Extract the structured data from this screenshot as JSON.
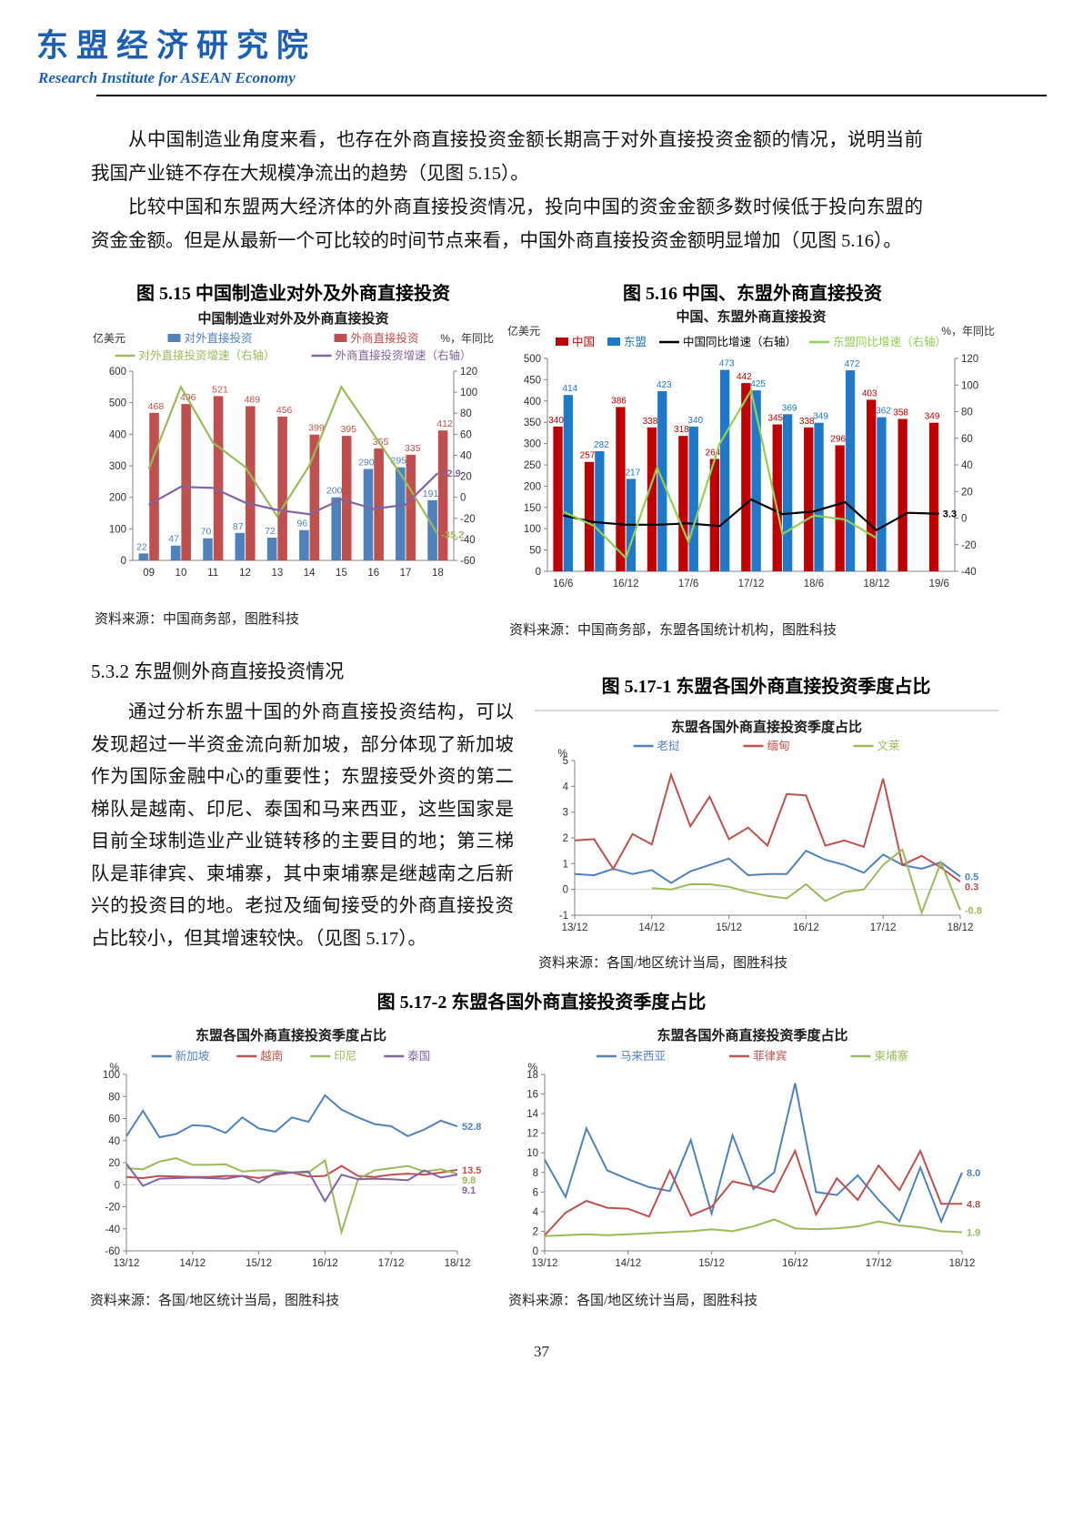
{
  "header": {
    "logo_cn": "东盟经济研究院",
    "logo_en": "Research Institute for ASEAN Economy"
  },
  "colors": {
    "logo_blue": "#1a5eb5",
    "body_text": "#111111"
  },
  "paragraphs": {
    "p1": "从中国制造业角度来看，也存在外商直接投资金额长期高于对外直接投资金额的情况，说明当前我国产业链不存在大规模净流出的趋势（见图 5.15）。",
    "p2": "比较中国和东盟两大经济体的外商直接投资情况，投向中国的资金金额多数时候低于投向东盟的资金金额。但是从最新一个可比较的时间节点来看，中国外商直接投资金额明显增加（见图 5.16）。",
    "section_heading": "5.3.2 东盟侧外商直接投资情况",
    "p3": "通过分析东盟十国的外商直接投资结构，可以发现超过一半资金流向新加坡，部分体现了新加坡作为国际金融中心的重要性；东盟接受外资的第二梯队是越南、印尼、泰国和马来西亚，这些国家是目前全球制造业产业链转移的主要目的地；第三梯队是菲律宾、柬埔寨，其中柬埔寨是继越南之后新兴的投资目的地。老挝及缅甸接受的外商直接投资占比较小，但其增速较快。（见图 5.17）。"
  },
  "captions": {
    "fig515": "图 5.15 中国制造业对外及外商直接投资",
    "fig516": "图 5.16 中国、东盟外商直接投资",
    "fig5171": "图 5.17-1 东盟各国外商直接投资季度占比",
    "fig5172": "图 5.17-2 东盟各国外商直接投资季度占比"
  },
  "page_number": "37",
  "chart_data": [
    {
      "type": "combo",
      "title": "中国制造业对外及外商直接投资",
      "unit_left": "亿美元",
      "unit_right": "%，年同比",
      "legend_rows": 2,
      "categories": [
        "09",
        "10",
        "11",
        "12",
        "13",
        "14",
        "15",
        "16",
        "17",
        "18"
      ],
      "x_label_stride": 1,
      "left_axis": {
        "min": 0,
        "max": 600,
        "step": 100
      },
      "right_axis": {
        "min": -60,
        "max": 120,
        "step": 20
      },
      "bar_series": [
        {
          "name": "对外直接投资",
          "color": "#4f81bd",
          "labels": true,
          "values": [
            22,
            47,
            70,
            87,
            72,
            96,
            200,
            290,
            295,
            191
          ]
        },
        {
          "name": "外商直接投资",
          "color": "#c0504d",
          "labels": true,
          "values": [
            468,
            496,
            521,
            489,
            456,
            399,
            395,
            355,
            335,
            412
          ]
        }
      ],
      "line_series": [
        {
          "name": "对外直接投资增速（右轴）",
          "color": "#9bbb59",
          "values": [
            27,
            105,
            52,
            29,
            -18,
            30,
            105,
            60,
            15,
            -35.2
          ],
          "end_label": "-35.2"
        },
        {
          "name": "外商直接投资增速（右轴）",
          "color": "#8064a2",
          "values": [
            -7,
            10,
            9,
            -5,
            -12,
            -16,
            -2,
            -11,
            -7,
            22.9
          ],
          "end_label": "22.9"
        }
      ],
      "source": "资料来源：中国商务部，图胜科技"
    },
    {
      "type": "combo",
      "title": "中国、东盟外商直接投资",
      "unit_left": "亿美元",
      "unit_right": "%，年同比",
      "legend_rows": 1,
      "categories": [
        "16/6",
        "16/9",
        "16/12",
        "17/3",
        "17/6",
        "17/9",
        "17/12",
        "18/3",
        "18/6",
        "18/9",
        "18/12",
        "19/3",
        "19/6"
      ],
      "x_label_stride": 2,
      "left_axis": {
        "min": 0,
        "max": 500,
        "step": 50
      },
      "right_axis": {
        "min": -40,
        "max": 120,
        "step": 20
      },
      "bar_series": [
        {
          "name": "中国",
          "color": "#c00000",
          "labels": true,
          "values": [
            340,
            257,
            386,
            338,
            318,
            264,
            442,
            345,
            338,
            296,
            403,
            358,
            349
          ]
        },
        {
          "name": "东盟",
          "color": "#1f78c8",
          "labels": true,
          "values": [
            414,
            282,
            217,
            423,
            340,
            473,
            425,
            369,
            349,
            472,
            362,
            null,
            null
          ]
        }
      ],
      "line_series": [
        {
          "name": "中国同比增速（右轴）",
          "color": "#000000",
          "values": [
            2,
            -3,
            -5,
            -5,
            -4,
            -6,
            14,
            3,
            5,
            12,
            -9,
            4,
            3.3
          ],
          "end_label": "3.3"
        },
        {
          "name": "东盟同比增速（右轴）",
          "color": "#92d050",
          "values": [
            5,
            -6,
            -30,
            38,
            -18,
            56,
            96,
            -12,
            2,
            -1,
            -15,
            null,
            null
          ]
        }
      ],
      "source": "资料来源：中国商务部，东盟各国统计机构，图胜科技"
    },
    {
      "type": "line",
      "title": "东盟各国外商直接投资季度占比",
      "unit_left": "%",
      "top_rule": true,
      "axis": {
        "min": -1,
        "max": 5,
        "step": 1
      },
      "x_labels": [
        "13/12",
        "14/12",
        "15/12",
        "16/12",
        "17/12",
        "18/12"
      ],
      "x_stride": 4,
      "series": [
        {
          "name": "老挝",
          "color": "#4f81bd",
          "end_label": "0.5",
          "values": [
            0.6,
            0.55,
            0.8,
            0.6,
            0.75,
            0.25,
            0.7,
            0.95,
            1.2,
            0.55,
            0.6,
            0.6,
            1.5,
            1.15,
            0.95,
            0.65,
            1.35,
            0.95,
            0.8,
            1.05,
            0.5
          ]
        },
        {
          "name": "缅甸",
          "color": "#c0504d",
          "end_label": "0.3",
          "values": [
            1.9,
            1.95,
            0.8,
            2.15,
            1.75,
            4.45,
            2.45,
            3.6,
            1.95,
            2.4,
            1.7,
            3.7,
            3.65,
            1.7,
            1.9,
            1.65,
            4.3,
            0.95,
            1.3,
            0.85,
            0.3
          ]
        },
        {
          "name": "文莱",
          "color": "#9bbb59",
          "end_label": "-0.8",
          "values": [
            null,
            null,
            null,
            null,
            0.05,
            0,
            0.2,
            0.2,
            0.1,
            -0.1,
            -0.25,
            -0.35,
            0.2,
            -0.45,
            -0.1,
            0,
            0.95,
            1.55,
            -0.9,
            1.05,
            -0.8
          ]
        }
      ],
      "source": "资料来源：各国/地区统计当局，图胜科技"
    },
    {
      "type": "line",
      "title": "东盟各国外商直接投资季度占比",
      "unit_left": "%",
      "axis": {
        "min": -60,
        "max": 100,
        "step": 20
      },
      "x_labels": [
        "13/12",
        "14/12",
        "15/12",
        "16/12",
        "17/12",
        "18/12"
      ],
      "x_stride": 4,
      "series": [
        {
          "name": "新加坡",
          "color": "#4f81bd",
          "end_label": "52.8",
          "values": [
            44,
            67,
            43,
            46,
            54,
            53,
            47,
            61,
            51,
            48,
            61,
            57,
            81,
            68,
            61,
            55,
            53,
            44,
            50,
            58,
            52.8
          ]
        },
        {
          "name": "越南",
          "color": "#c0504d",
          "end_label": "13.5",
          "values": [
            7,
            6,
            8,
            7.5,
            7,
            7,
            8,
            8,
            6,
            9,
            11,
            7.5,
            8,
            17,
            8,
            7,
            9,
            10,
            9,
            11,
            13.5
          ]
        },
        {
          "name": "印尼",
          "color": "#9bbb59",
          "end_label": "9.8",
          "values": [
            15,
            14,
            21,
            24,
            18,
            18,
            18.5,
            12,
            13,
            13,
            11,
            11,
            22,
            -43,
            5,
            13,
            15,
            17,
            12,
            14,
            9.8
          ]
        },
        {
          "name": "泰国",
          "color": "#8064a2",
          "end_label": "9.1",
          "values": [
            19,
            -1,
            5.5,
            6,
            6.5,
            6,
            5.5,
            8,
            2,
            10.5,
            11,
            12,
            -15,
            9,
            5,
            5.5,
            5,
            4,
            13,
            6.5,
            9.1
          ]
        }
      ],
      "source": "资料来源：各国/地区统计当局，图胜科技"
    },
    {
      "type": "line",
      "title": "东盟各国外商直接投资季度占比",
      "unit_left": "%",
      "axis": {
        "min": 0,
        "max": 18,
        "step": 2
      },
      "x_labels": [
        "13/12",
        "14/12",
        "15/12",
        "16/12",
        "17/12",
        "18/12"
      ],
      "x_stride": 4,
      "series": [
        {
          "name": "马来西亚",
          "color": "#4f81bd",
          "end_label": "8.0",
          "values": [
            9.3,
            5.5,
            12.5,
            8.2,
            7.3,
            6.5,
            6.1,
            11.3,
            3.8,
            11.8,
            6.3,
            8,
            17.1,
            6,
            5.7,
            7.7,
            5.2,
            3,
            8.5,
            3,
            8
          ]
        },
        {
          "name": "菲律宾",
          "color": "#c0504d",
          "end_label": "4.8",
          "values": [
            1.6,
            3.9,
            5.1,
            4.4,
            4.3,
            3.5,
            8.2,
            3.6,
            4.5,
            7.1,
            6.6,
            6,
            10.2,
            3.7,
            7.4,
            5.2,
            8.7,
            6.2,
            10.2,
            4.8,
            4.8
          ]
        },
        {
          "name": "柬埔寨",
          "color": "#9bbb59",
          "end_label": "1.9",
          "values": [
            1.5,
            1.6,
            1.7,
            1.6,
            1.7,
            1.8,
            1.9,
            2,
            2.2,
            2,
            2.5,
            3.2,
            2.3,
            2.2,
            2.3,
            2.5,
            3,
            2.6,
            2.4,
            2,
            1.9
          ]
        }
      ],
      "source": "资料来源：各国/地区统计当局，图胜科技"
    }
  ]
}
